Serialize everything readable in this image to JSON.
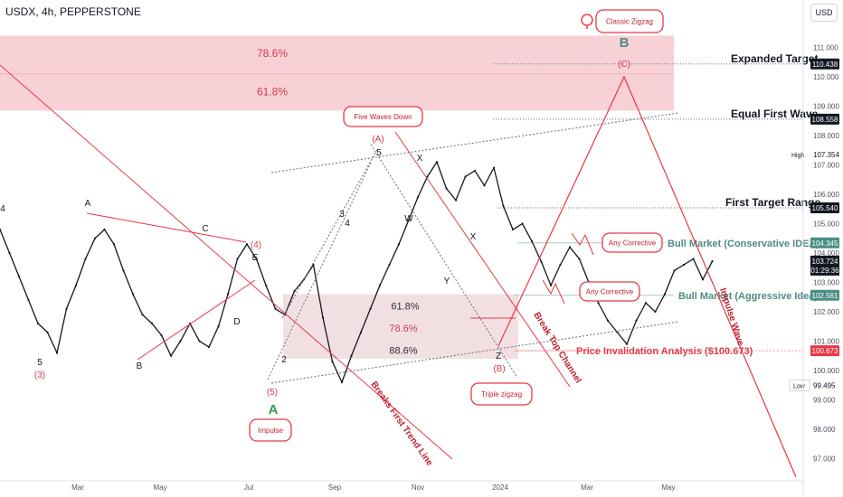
{
  "header": {
    "symbol": "USDX, 4h, PEPPERSTONE",
    "currency": "USD"
  },
  "chart_data": {
    "type": "line",
    "title": "USDX, 4h, PEPPERSTONE",
    "ylim": [
      96.5,
      112.5
    ],
    "y_ticks": [
      97.0,
      98.0,
      99.0,
      100.0,
      101.0,
      102.0,
      103.0,
      104.0,
      105.0,
      106.0,
      107.0,
      108.0,
      109.0,
      110.0,
      111.0
    ],
    "x_ticks": [
      "Mar",
      "May",
      "Jul",
      "Sep",
      "Nov",
      "2024",
      "Mar",
      "May"
    ],
    "series": [
      {
        "name": "USDX",
        "values": [
          104.8,
          104.0,
          103.2,
          102.4,
          101.6,
          101.3,
          100.6,
          102.1,
          102.9,
          103.8,
          104.5,
          104.8,
          104.3,
          103.4,
          102.6,
          101.9,
          101.6,
          101.2,
          100.5,
          101.0,
          101.6,
          101.0,
          100.8,
          101.5,
          102.6,
          103.8,
          104.3,
          103.8,
          102.9,
          102.1,
          101.9,
          102.7,
          103.1,
          103.6,
          101.8,
          100.3,
          99.6,
          100.5,
          101.3,
          102.1,
          102.9,
          103.6,
          104.3,
          105.1,
          105.9,
          106.6,
          107.1,
          106.2,
          105.8,
          106.6,
          106.8,
          106.3,
          106.9,
          105.6,
          104.8,
          105.0,
          104.4,
          103.7,
          102.9,
          103.6,
          104.2,
          103.8,
          103.0,
          102.3,
          101.7,
          101.3,
          100.9,
          101.7,
          102.3,
          102.0,
          102.6,
          103.4,
          103.6,
          103.8,
          103.1,
          103.72
        ],
        "dates": [
          "2023-01-01",
          "2023-01-08",
          "2023-01-15",
          "2023-01-22",
          "2023-01-29",
          "2023-02-05",
          "2023-02-12",
          "2023-02-19",
          "2023-02-26",
          "2023-03-05",
          "2023-03-12",
          "2023-03-19",
          "2023-03-26",
          "2023-04-02",
          "2023-04-09",
          "2023-04-16",
          "2023-04-23",
          "2023-04-30",
          "2023-05-07",
          "2023-05-14",
          "2023-05-21",
          "2023-05-28",
          "2023-06-04",
          "2023-06-11",
          "2023-06-18",
          "2023-06-25",
          "2023-07-02",
          "2023-07-09",
          "2023-07-16",
          "2023-07-23",
          "2023-07-30",
          "2023-08-06",
          "2023-08-13",
          "2023-08-20",
          "2023-08-27",
          "2023-09-03",
          "2023-09-10",
          "2023-09-17",
          "2023-09-24",
          "2023-10-01",
          "2023-10-08",
          "2023-10-15",
          "2023-10-22",
          "2023-10-29",
          "2023-11-05",
          "2023-11-12",
          "2023-11-19",
          "2023-11-26",
          "2023-12-03",
          "2023-12-10",
          "2023-12-17",
          "2023-12-24",
          "2023-12-31",
          "2024-01-07",
          "2024-01-14",
          "2024-01-21",
          "2024-01-28",
          "2024-02-04",
          "2024-02-11",
          "2024-02-18",
          "2024-02-25",
          "2024-03-03",
          "2024-03-10",
          "2024-03-17",
          "2024-03-24",
          "2024-03-31",
          "2024-04-07",
          "2024-04-14",
          "2024-04-21",
          "2024-04-28",
          "2024-05-05",
          "2024-05-12",
          "2024-05-19",
          "2024-05-26",
          "2024-06-02",
          "2024-06-09"
        ]
      }
    ],
    "zones": [
      {
        "label": "78.6%",
        "from": 110.1,
        "to": 111.4,
        "color": "#f7c9cf"
      },
      {
        "label": "61.8%",
        "from": 108.85,
        "to": 110.1,
        "color": "#f7c9cf"
      },
      {
        "label": "61.8%",
        "from": 101.8,
        "to": 102.6,
        "color": "#f0d9dc"
      },
      {
        "label": "78.6%",
        "from": 101.1,
        "to": 101.8,
        "color": "#f0d9dc"
      },
      {
        "label": "88.6%",
        "from": 100.4,
        "to": 101.1,
        "color": "#f0d9dc"
      }
    ],
    "price_levels": [
      {
        "label": "Expanded Target",
        "value": 110.438,
        "value_text": "110.438",
        "style": "dashed"
      },
      {
        "label": "Equal First Wave",
        "value": 108.558,
        "value_text": "108.558",
        "style": "dashed"
      },
      {
        "label": "First Target Range",
        "value": 105.54,
        "value_text": "105.540",
        "style": "dashed"
      },
      {
        "label": "Bull Market (Conservative IDEA)",
        "value": 104.345,
        "value_text": "104.345",
        "style": "solid-green"
      },
      {
        "label": "Bull Market (Aggressive Idea)",
        "value": 102.561,
        "value_text": "102.561",
        "style": "solid-green"
      },
      {
        "label": "Price Invalidation Analysis ($100.673)",
        "value": 100.673,
        "value_text": "100.673",
        "style": "solid-red"
      }
    ],
    "price_tags": [
      {
        "value": 103.724,
        "value_text": "103.724",
        "sub": "01:29:36",
        "color": "#131722"
      }
    ],
    "high_low": [
      {
        "label": "High",
        "value": 107.354,
        "value_text": "107.354"
      },
      {
        "label": "Low",
        "value": 99.495,
        "value_text": "99.495"
      }
    ],
    "wave_labels": [
      "4",
      "A",
      "C",
      "E",
      "5",
      "(3)",
      "B",
      "D",
      "(4)",
      "2",
      "(5)",
      "A",
      "3",
      "4",
      "5",
      "(A)",
      "X",
      "W",
      "X",
      "Y",
      "Z",
      "(B)",
      "(C)",
      "B"
    ],
    "callouts": [
      "Five Waves Down",
      "Impulse",
      "Triple zigzag",
      "Classic Zigzag",
      "Any Corrective",
      "Any Corrective"
    ],
    "annotations": [
      "Breaks First Trend Line",
      "Break Top Channel",
      "Impulse Wave"
    ]
  }
}
